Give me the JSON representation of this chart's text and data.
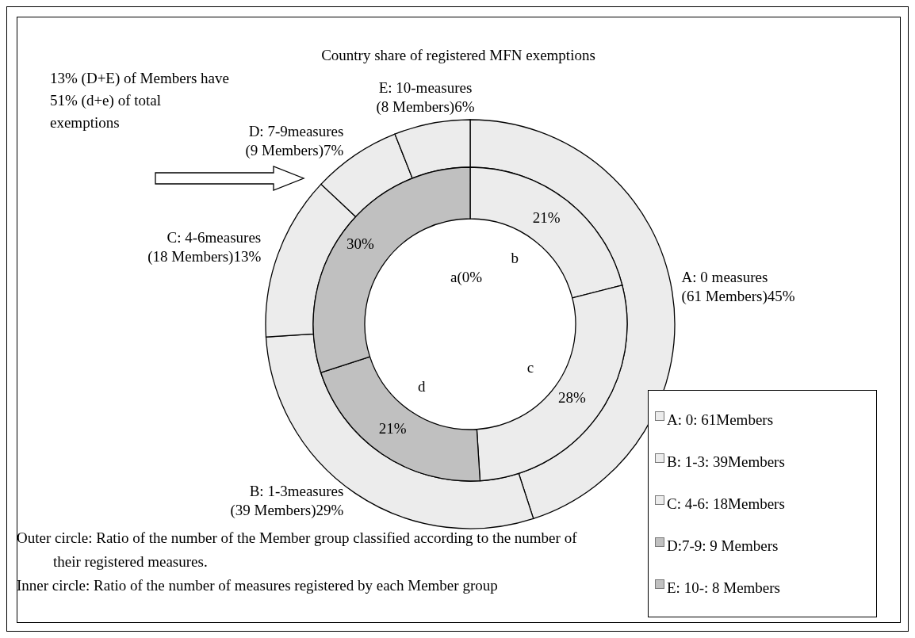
{
  "chart_data": {
    "type": "donut",
    "title": "Country share of registered MFN exemptions",
    "categories": [
      "A: 0: 61Members",
      "B: 1-3: 39Members",
      "C: 4-6: 18Members",
      "D:7-9: 9 Members",
      "E: 10-: 8 Members"
    ],
    "series": [
      {
        "values": [
          45,
          29,
          13,
          7,
          6
        ],
        "colors": [
          "#ececec",
          "#ececec",
          "#ececec",
          "#ececec",
          "#ececec"
        ],
        "value_labels": [
          "A: 0 measures\n(61 Members)45%",
          "B: 1-3measures\n(39 Members)29%",
          "C: 4-6measures\n(18 Members)13%",
          "D: 7-9measures\n(9 Members)7%",
          "E: 10-measures\n(8 Members)6%"
        ]
      },
      {
        "values": [
          0,
          21,
          28,
          21,
          30
        ],
        "colors": [
          "#ececec",
          "#ececec",
          "#ececec",
          "#c0c0c0",
          "#c0c0c0"
        ],
        "value_labels": [
          "a(0%",
          "21%",
          "28%",
          "21%",
          "30%"
        ]
      }
    ],
    "legend": "bottom right",
    "annotations": [
      "13% (D+E) of Members have\n51% (d+e) of total\nexemptions",
      {
        "text": "b",
        "x": "B: 1-3: 39Members"
      },
      {
        "text": "c",
        "x": "C: 4-6: 18Members"
      },
      {
        "text": "d",
        "x": "D:7-9: 9 Members"
      },
      "Outer circle: Ratio of the number of the Member group classified according to the number of their registered measures.",
      "Inner circle: Ratio of the number of measures registered by each Member group"
    ]
  }
}
